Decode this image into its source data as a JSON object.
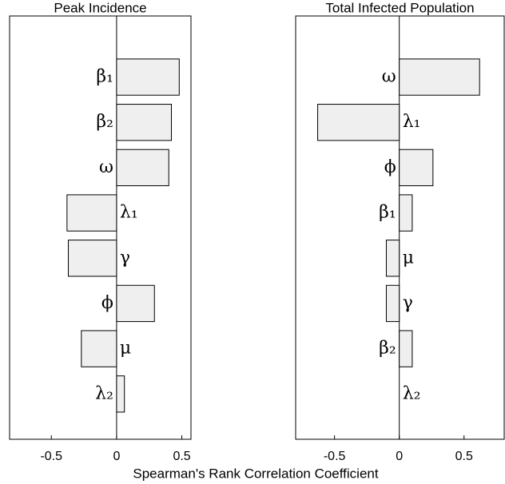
{
  "chart_data": [
    {
      "type": "bar",
      "orientation": "horizontal",
      "title": "Peak Incidence",
      "categories": [
        "β₁",
        "β₂",
        "ω",
        "λ₁",
        "γ",
        "ϕ",
        "μ",
        "λ₂"
      ],
      "values": [
        0.48,
        0.42,
        0.4,
        -0.38,
        -0.37,
        0.29,
        -0.27,
        0.06
      ],
      "color": "#efefef",
      "xlim": [
        -0.82,
        0.57
      ],
      "xticks": [
        -0.5,
        0,
        0.5
      ]
    },
    {
      "type": "bar",
      "orientation": "horizontal",
      "title": "Total Infected Population",
      "categories": [
        "ω",
        "λ₁",
        "ϕ",
        "β₁",
        "μ",
        "γ",
        "β₂",
        "λ₂"
      ],
      "values": [
        0.62,
        -0.63,
        0.26,
        0.1,
        -0.1,
        -0.1,
        0.1,
        0
      ],
      "color": "#efefef",
      "xlim": [
        -0.8,
        0.81
      ],
      "xticks": [
        -0.5,
        0,
        0.5
      ]
    }
  ],
  "xlabel": "Spearman's Rank Correlation Coefficient"
}
